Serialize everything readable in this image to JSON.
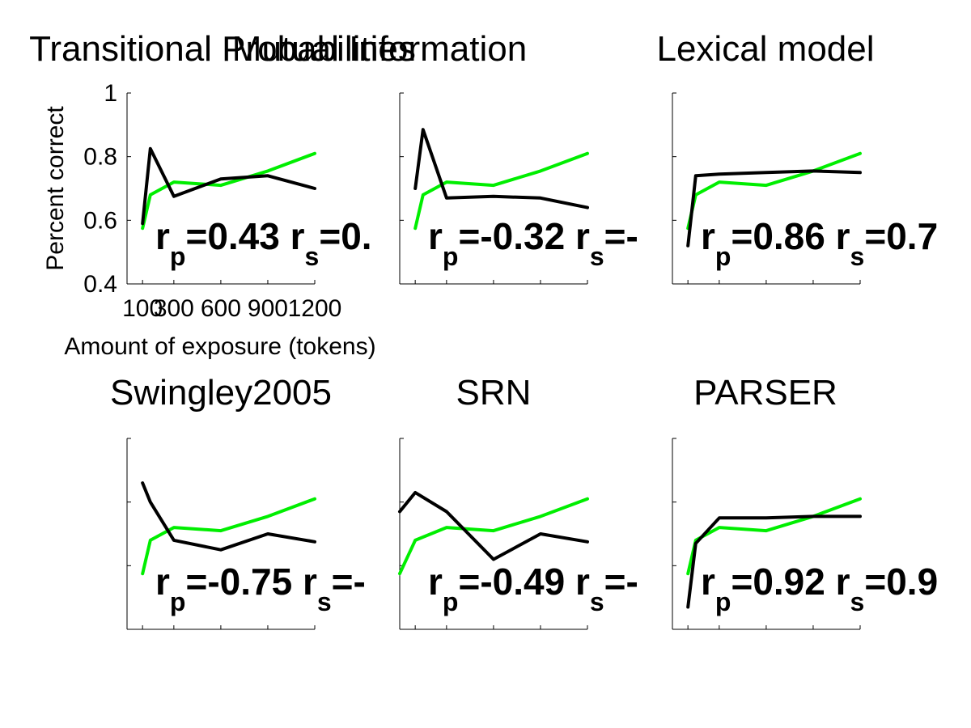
{
  "figure": {
    "xlabel": "Amount of exposure (tokens)",
    "ylabel": "Percent correct",
    "series_colors": {
      "human": "#00ee00",
      "model": "#000000"
    }
  },
  "chart_data": [
    {
      "type": "line",
      "title": "Transitional Probabilities",
      "x": [
        100,
        150,
        300,
        600,
        900,
        1200
      ],
      "xticks": [
        100,
        300,
        600,
        900,
        1200
      ],
      "yticks": [
        0.4,
        0.6,
        0.8,
        1
      ],
      "ylim": [
        0.4,
        1.0
      ],
      "xlim": [
        1,
        1200
      ],
      "series": [
        {
          "color": "#00ee00",
          "values": [
            0.575,
            0.68,
            0.72,
            0.71,
            0.755,
            0.81
          ]
        },
        {
          "color": "#000000",
          "values": [
            0.59,
            0.825,
            0.675,
            0.73,
            0.74,
            0.7
          ]
        }
      ],
      "annotation": {
        "rp_prefix": "r",
        "rp_sub": "p",
        "rp_value": "=0.43",
        "rs_prefix": "r",
        "rs_sub": "s",
        "rs_value": "=0."
      }
    },
    {
      "type": "line",
      "title": "Mutual Information",
      "x": [
        100,
        150,
        300,
        600,
        900,
        1200
      ],
      "ylim": [
        0.4,
        1.0
      ],
      "xlim": [
        1,
        1200
      ],
      "series": [
        {
          "color": "#00ee00",
          "values": [
            0.575,
            0.68,
            0.72,
            0.71,
            0.755,
            0.81
          ]
        },
        {
          "color": "#000000",
          "values": [
            0.7,
            0.885,
            0.67,
            0.675,
            0.67,
            0.64
          ]
        }
      ],
      "annotation": {
        "rp_prefix": "r",
        "rp_sub": "p",
        "rp_value": "=-0.32",
        "rs_prefix": "r",
        "rs_sub": "s",
        "rs_value": "=-"
      }
    },
    {
      "type": "line",
      "title": "Lexical model",
      "x": [
        100,
        150,
        300,
        600,
        900,
        1200
      ],
      "ylim": [
        0.4,
        1.0
      ],
      "xlim": [
        1,
        1200
      ],
      "series": [
        {
          "color": "#00ee00",
          "values": [
            0.575,
            0.68,
            0.72,
            0.71,
            0.755,
            0.81
          ]
        },
        {
          "color": "#000000",
          "values": [
            0.52,
            0.74,
            0.745,
            0.75,
            0.755,
            0.75
          ]
        }
      ],
      "annotation": {
        "rp_prefix": "r",
        "rp_sub": "p",
        "rp_value": "=0.86",
        "rs_prefix": "r",
        "rs_sub": "s",
        "rs_value": "=0.7"
      }
    },
    {
      "type": "line",
      "title": "Swingley2005",
      "x": [
        100,
        150,
        300,
        600,
        900,
        1200
      ],
      "ylim": [
        0.4,
        1.0
      ],
      "xlim": [
        1,
        1200
      ],
      "series": [
        {
          "color": "#00ee00",
          "values": [
            0.575,
            0.68,
            0.72,
            0.71,
            0.755,
            0.81
          ]
        },
        {
          "color": "#000000",
          "values": [
            0.86,
            0.8,
            0.68,
            0.65,
            0.7,
            0.675
          ]
        }
      ],
      "annotation": {
        "rp_prefix": "r",
        "rp_sub": "p",
        "rp_value": "=-0.75",
        "rs_prefix": "r",
        "rs_sub": "s",
        "rs_value": "=-"
      }
    },
    {
      "type": "line",
      "title": "SRN",
      "x": [
        1,
        100,
        300,
        600,
        900,
        1200
      ],
      "ylim": [
        0.4,
        1.0
      ],
      "xlim": [
        1,
        1200
      ],
      "series": [
        {
          "color": "#00ee00",
          "values": [
            0.575,
            0.68,
            0.72,
            0.71,
            0.755,
            0.81
          ]
        },
        {
          "color": "#000000",
          "values": [
            0.77,
            0.83,
            0.77,
            0.62,
            0.7,
            0.675
          ]
        }
      ],
      "annotation": {
        "rp_prefix": "r",
        "rp_sub": "p",
        "rp_value": "=-0.49",
        "rs_prefix": "r",
        "rs_sub": "s",
        "rs_value": "=-"
      }
    },
    {
      "type": "line",
      "title": "PARSER",
      "x": [
        100,
        150,
        300,
        600,
        900,
        1200
      ],
      "ylim": [
        0.4,
        1.0
      ],
      "xlim": [
        1,
        1200
      ],
      "series": [
        {
          "color": "#00ee00",
          "values": [
            0.575,
            0.68,
            0.72,
            0.71,
            0.755,
            0.81
          ]
        },
        {
          "color": "#000000",
          "values": [
            0.47,
            0.67,
            0.75,
            0.75,
            0.755,
            0.755
          ]
        }
      ],
      "annotation": {
        "rp_prefix": "r",
        "rp_sub": "p",
        "rp_value": "=0.92",
        "rs_prefix": "r",
        "rs_sub": "s",
        "rs_value": "=0.9"
      }
    }
  ]
}
